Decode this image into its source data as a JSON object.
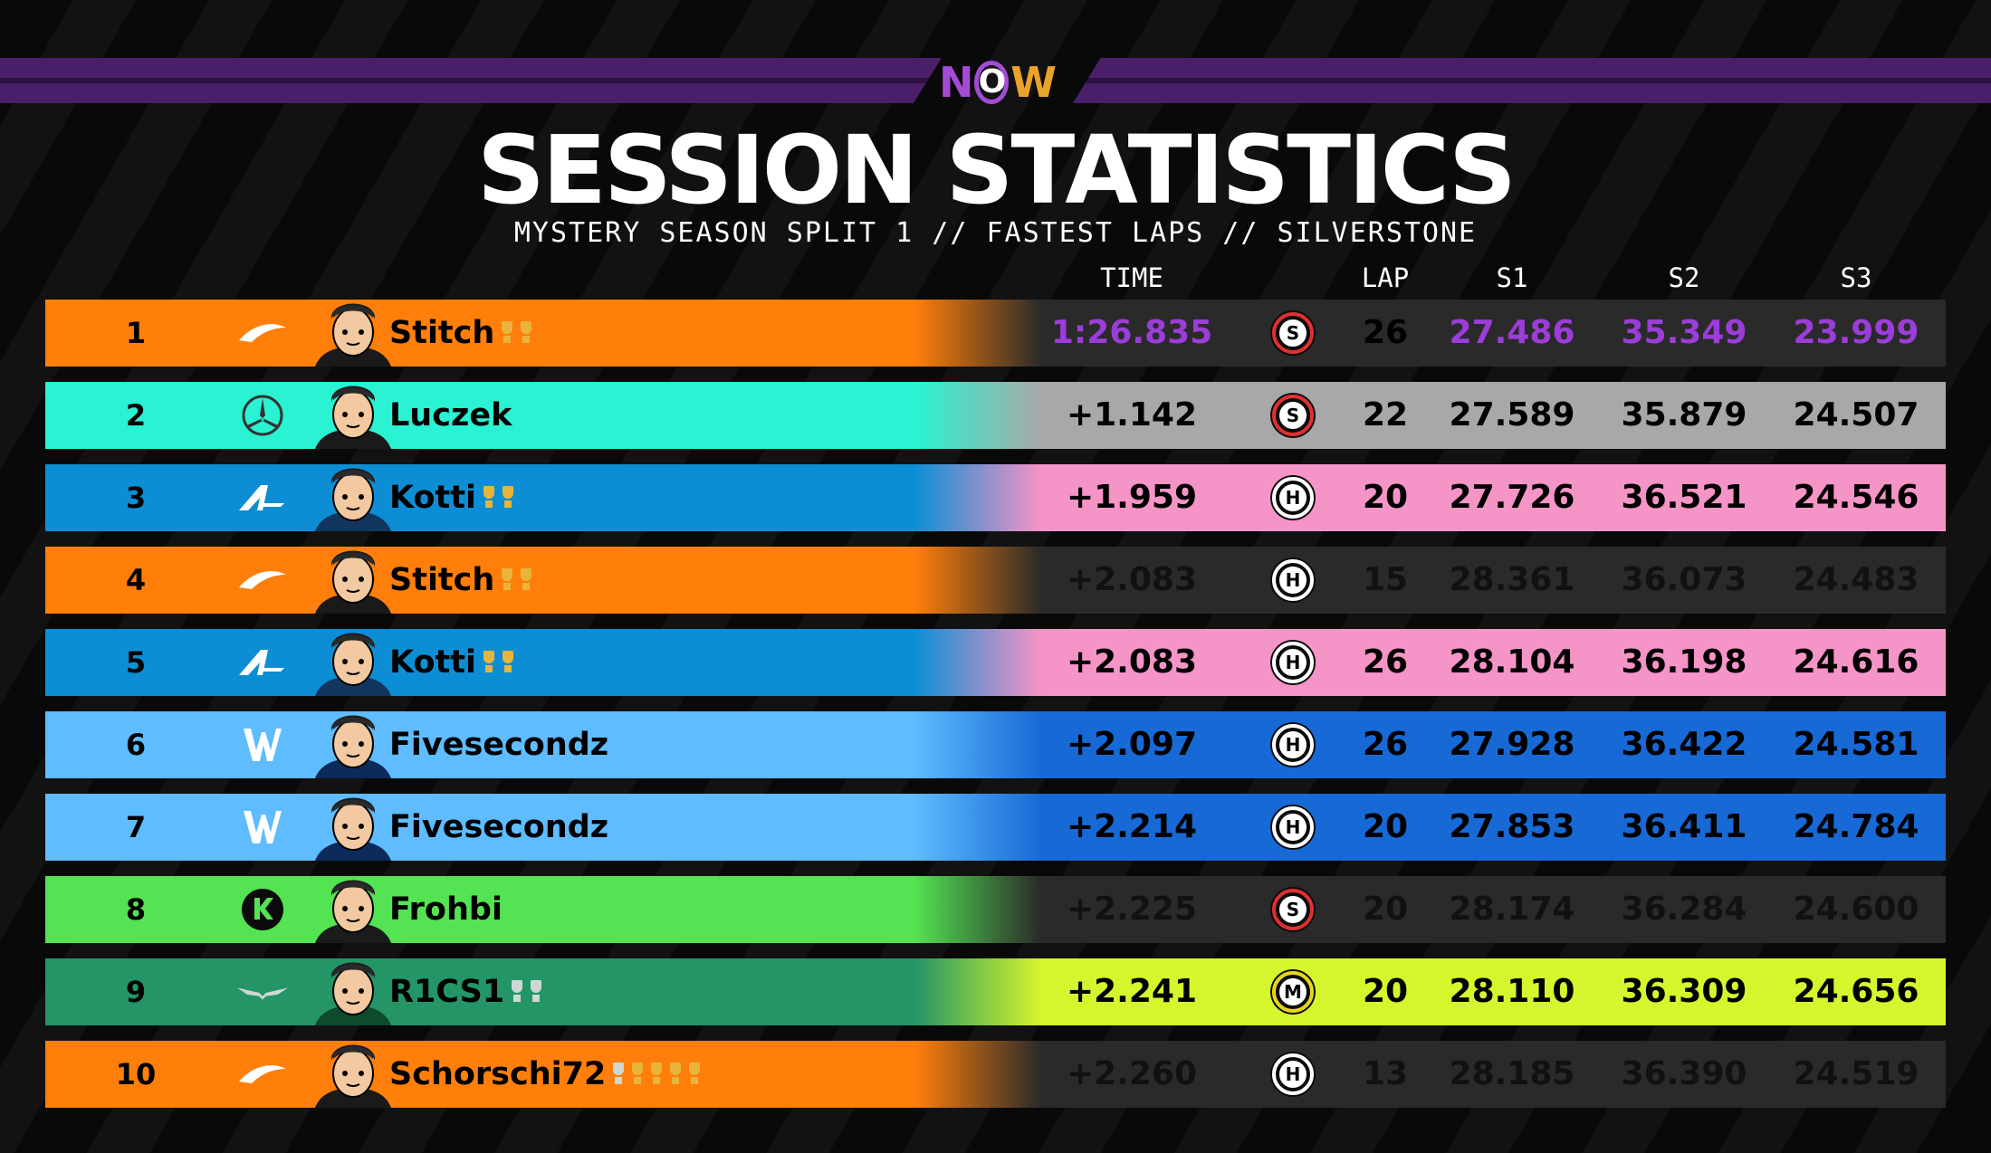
{
  "brand": {
    "logo_text": "NOW",
    "logo_parts": [
      "N",
      "O",
      "W"
    ]
  },
  "header": {
    "title": "SESSION STATISTICS",
    "subtitle": "MYSTERY SEASON SPLIT 1 // FASTEST LAPS // SILVERSTONE"
  },
  "columns": {
    "time": "TIME",
    "lap": "LAP",
    "s1": "S1",
    "s2": "S2",
    "s3": "S3"
  },
  "colors": {
    "mclaren": "#ff7f0a",
    "mercedes": "#29f3d2",
    "alpine": "#0d8ed4",
    "williams": "#5ebcff",
    "sauber": "#54e352",
    "aston": "#249566",
    "stats_dark": "#2a2a2a",
    "stats_grey": "#a8a8a8",
    "stats_pink": "#f594c6",
    "stats_blue": "#1769d6",
    "stats_lime": "#d6f52c",
    "fastest": "#9b3dd8"
  },
  "rows": [
    {
      "pos": "1",
      "team": "mclaren",
      "team_logo": "mclaren-swoosh-icon",
      "driver": "Stitch",
      "trophies": [
        "gold",
        "gold"
      ],
      "time": "1:26.835",
      "tyre": "S",
      "lap": "26",
      "s1": "27.486",
      "s2": "35.349",
      "s3": "23.999"
    },
    {
      "pos": "2",
      "team": "mercedes",
      "team_logo": "mercedes-star-icon",
      "driver": "Luczek",
      "trophies": [],
      "time": "+1.142",
      "tyre": "S",
      "lap": "22",
      "s1": "27.589",
      "s2": "35.879",
      "s3": "24.507"
    },
    {
      "pos": "3",
      "team": "alpine",
      "team_logo": "alpine-a-icon",
      "driver": "Kotti",
      "trophies": [
        "gold",
        "gold"
      ],
      "time": "+1.959",
      "tyre": "H",
      "lap": "20",
      "s1": "27.726",
      "s2": "36.521",
      "s3": "24.546"
    },
    {
      "pos": "4",
      "team": "mclaren",
      "team_logo": "mclaren-swoosh-icon",
      "driver": "Stitch",
      "trophies": [
        "gold",
        "gold"
      ],
      "time": "+2.083",
      "tyre": "H",
      "lap": "15",
      "s1": "28.361",
      "s2": "36.073",
      "s3": "24.483"
    },
    {
      "pos": "5",
      "team": "alpine",
      "team_logo": "alpine-a-icon",
      "driver": "Kotti",
      "trophies": [
        "gold",
        "gold"
      ],
      "time": "+2.083",
      "tyre": "H",
      "lap": "26",
      "s1": "28.104",
      "s2": "36.198",
      "s3": "24.616"
    },
    {
      "pos": "6",
      "team": "williams",
      "team_logo": "williams-w-icon",
      "driver": "Fivesecondz",
      "trophies": [],
      "time": "+2.097",
      "tyre": "H",
      "lap": "26",
      "s1": "27.928",
      "s2": "36.422",
      "s3": "24.581"
    },
    {
      "pos": "7",
      "team": "williams",
      "team_logo": "williams-w-icon",
      "driver": "Fivesecondz",
      "trophies": [],
      "time": "+2.214",
      "tyre": "H",
      "lap": "20",
      "s1": "27.853",
      "s2": "36.411",
      "s3": "24.784"
    },
    {
      "pos": "8",
      "team": "sauber",
      "team_logo": "sauber-k-icon",
      "driver": "Frohbi",
      "trophies": [],
      "time": "+2.225",
      "tyre": "S",
      "lap": "20",
      "s1": "28.174",
      "s2": "36.284",
      "s3": "24.600"
    },
    {
      "pos": "9",
      "team": "aston",
      "team_logo": "aston-wings-icon",
      "driver": "R1CS1",
      "trophies": [
        "silver",
        "silver"
      ],
      "time": "+2.241",
      "tyre": "M",
      "lap": "20",
      "s1": "28.110",
      "s2": "36.309",
      "s3": "24.656"
    },
    {
      "pos": "10",
      "team": "mclaren",
      "team_logo": "mclaren-swoosh-icon",
      "driver": "Schorschi72",
      "trophies": [
        "silver",
        "gold",
        "gold",
        "gold",
        "gold"
      ],
      "time": "+2.260",
      "tyre": "H",
      "lap": "13",
      "s1": "28.185",
      "s2": "36.390",
      "s3": "24.519"
    }
  ]
}
